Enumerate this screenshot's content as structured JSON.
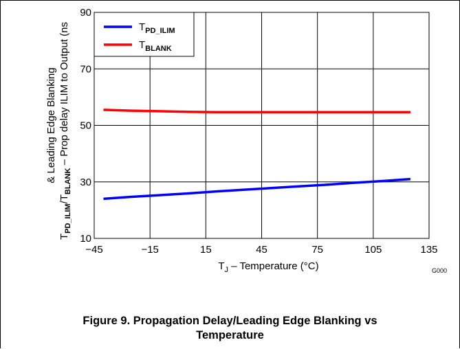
{
  "chart_data": {
    "type": "line",
    "x": [
      -40,
      -25,
      -10,
      5,
      20,
      35,
      50,
      65,
      80,
      95,
      110,
      125
    ],
    "series": [
      {
        "name": "T_PD_ILIM",
        "name_base": "T",
        "name_sub": "PD_ILIM",
        "color": "#0000ff",
        "values": [
          24.0,
          24.7,
          25.3,
          25.9,
          26.6,
          27.2,
          27.8,
          28.4,
          29.0,
          29.7,
          30.3,
          31.0
        ]
      },
      {
        "name": "T_BLANK",
        "name_base": "T",
        "name_sub": "BLANK",
        "color": "#ff0000",
        "values": [
          55.5,
          55.2,
          55.0,
          54.8,
          54.7,
          54.7,
          54.7,
          54.7,
          54.7,
          54.7,
          54.7,
          54.7
        ]
      }
    ],
    "xlim": [
      -45,
      135
    ],
    "ylim": [
      10,
      90
    ],
    "x_ticks": [
      -45,
      -15,
      15,
      45,
      75,
      105,
      135
    ],
    "y_ticks": [
      10,
      30,
      50,
      70,
      90
    ],
    "x_tick_labels": [
      "−45",
      "−15",
      "15",
      "45",
      "75",
      "105",
      "135"
    ],
    "y_tick_labels": [
      "10",
      "30",
      "50",
      "70",
      "90"
    ],
    "xlabel": {
      "base": "T",
      "sub": "J",
      "rest": " – Temperature (°C)"
    },
    "ylabel": {
      "line1": "& Leading Edge Blanking",
      "line2_sub1_base": "T",
      "line2_sub1": "PD_ILIM",
      "line2_mid": "/T",
      "line2_sub2": "BLANK",
      "line2_rest": " – Prop delay ILIM to Output (ns"
    },
    "grid": true,
    "legend_position": "top-left",
    "code": "G000"
  },
  "caption": {
    "line1": "Figure 9. Propagation Delay/Leading Edge Blanking vs",
    "line2": "Temperature"
  }
}
